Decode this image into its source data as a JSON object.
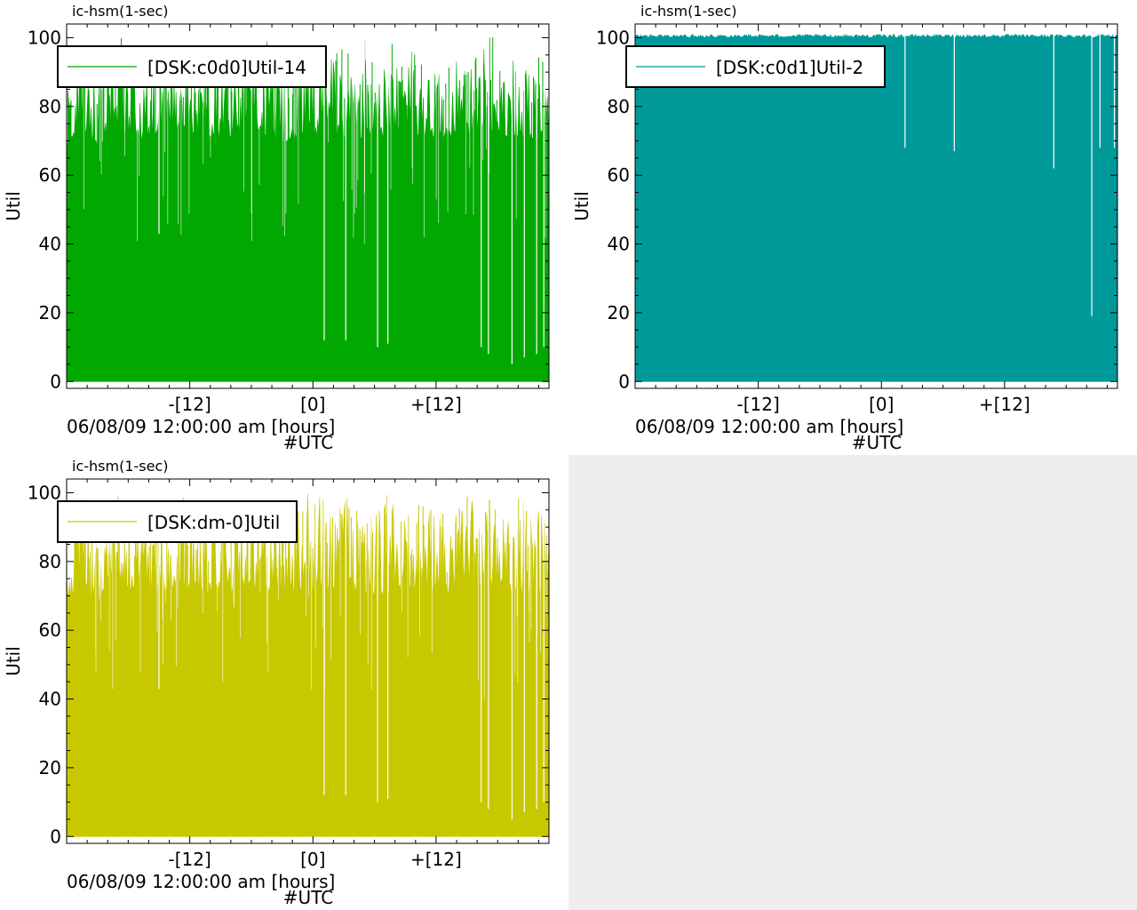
{
  "chart_data": [
    {
      "type": "area",
      "title": "ic-hsm(1-sec)",
      "ylabel": "Util",
      "xlabel": "06/08/09 12:00:00 am [hours]",
      "xlabel2": "#UTC",
      "ylim": [
        0,
        100
      ],
      "xlim": [
        -24,
        23
      ],
      "x_ticks": [
        -12,
        0,
        12
      ],
      "x_tick_labels": [
        "-[12]",
        "[0]",
        "+[12]"
      ],
      "y_ticks": [
        0,
        20,
        40,
        60,
        80,
        100
      ],
      "legend_loc": "upper-left",
      "grid": false,
      "series": [
        {
          "name": "[DSK:c0d0]Util-14",
          "color": "#00a800",
          "x": [
            -24,
            -23,
            -22,
            -21,
            -20,
            -19,
            -18,
            -17,
            -16,
            -15,
            -14,
            -13,
            -12,
            -11,
            -10,
            -9,
            -8,
            -7,
            -6,
            -5,
            -4,
            -3,
            -2,
            -1,
            0,
            1,
            2,
            3,
            4,
            5,
            6,
            7,
            8,
            9,
            10,
            11,
            12,
            13,
            14,
            15,
            16,
            17,
            18,
            19,
            20,
            21,
            22,
            23
          ],
          "max": [
            85,
            100,
            97,
            95,
            98,
            100,
            100,
            95,
            92,
            100,
            95,
            98,
            100,
            92,
            98,
            99,
            97,
            100,
            96,
            99,
            100,
            95,
            97,
            99,
            100,
            101,
            94,
            100,
            96,
            100,
            93,
            100,
            98,
            92,
            100,
            95,
            100,
            91,
            94,
            100,
            96,
            100,
            101,
            93,
            99,
            100,
            95,
            90
          ],
          "base": [
            65,
            70,
            70,
            68,
            70,
            72,
            70,
            70,
            68,
            70,
            70,
            72,
            70,
            70,
            70,
            70,
            70,
            70,
            72,
            70,
            70,
            68,
            70,
            70,
            70,
            70,
            72,
            70,
            70,
            70,
            70,
            70,
            70,
            72,
            70,
            70,
            70,
            70,
            70,
            70,
            70,
            72,
            70,
            70,
            70,
            70,
            70,
            72
          ],
          "dips": [
            [
              -15,
              43
            ],
            [
              1.1,
              12
            ],
            [
              3.2,
              12
            ],
            [
              6.3,
              10
            ],
            [
              7.3,
              11
            ],
            [
              16.4,
              10
            ],
            [
              17.1,
              8
            ],
            [
              19.4,
              5
            ],
            [
              20.6,
              7
            ],
            [
              21.8,
              8
            ],
            [
              22.5,
              10
            ]
          ]
        }
      ]
    },
    {
      "type": "area",
      "title": "ic-hsm(1-sec)",
      "ylabel": "Util",
      "xlabel": "06/08/09 12:00:00 am [hours]",
      "xlabel2": "#UTC",
      "ylim": [
        0,
        100
      ],
      "xlim": [
        -24,
        23
      ],
      "x_ticks": [
        -12,
        0,
        12
      ],
      "x_tick_labels": [
        "-[12]",
        "[0]",
        "+[12]"
      ],
      "y_ticks": [
        0,
        20,
        40,
        60,
        80,
        100
      ],
      "legend_loc": "upper-left",
      "grid": false,
      "series": [
        {
          "name": "[DSK:c0d1]Util-2",
          "color": "#009999",
          "x": [
            -24,
            23
          ],
          "max": [
            101,
            101
          ],
          "base": [
            100,
            100
          ],
          "dips": [
            [
              2.3,
              68
            ],
            [
              7.1,
              67
            ],
            [
              16.8,
              62
            ],
            [
              20.5,
              19
            ],
            [
              21.3,
              68
            ],
            [
              22.7,
              68
            ]
          ]
        }
      ]
    },
    {
      "type": "area",
      "title": "ic-hsm(1-sec)",
      "ylabel": "Util",
      "xlabel": "06/08/09 12:00:00 am [hours]",
      "xlabel2": "#UTC",
      "ylim": [
        0,
        100
      ],
      "xlim": [
        -24,
        23
      ],
      "x_ticks": [
        -12,
        0,
        12
      ],
      "x_tick_labels": [
        "-[12]",
        "[0]",
        "+[12]"
      ],
      "y_ticks": [
        0,
        20,
        40,
        60,
        80,
        100
      ],
      "legend_loc": "upper-left",
      "grid": false,
      "series": [
        {
          "name": "[DSK:dm-0]Util",
          "color": "#c8c800",
          "x": [
            -24,
            -23,
            -22,
            -21,
            -20,
            -19,
            -18,
            -17,
            -16,
            -15,
            -14,
            -13,
            -12,
            -11,
            -10,
            -9,
            -8,
            -7,
            -6,
            -5,
            -4,
            -3,
            -2,
            -1,
            0,
            1,
            2,
            3,
            4,
            5,
            6,
            7,
            8,
            9,
            10,
            11,
            12,
            13,
            14,
            15,
            16,
            17,
            18,
            19,
            20,
            21,
            22,
            23
          ],
          "max": [
            85,
            100,
            97,
            95,
            98,
            100,
            100,
            95,
            92,
            100,
            95,
            98,
            100,
            92,
            98,
            99,
            97,
            100,
            96,
            99,
            100,
            95,
            97,
            99,
            102,
            101,
            94,
            100,
            96,
            100,
            93,
            100,
            98,
            92,
            100,
            95,
            100,
            91,
            94,
            100,
            96,
            100,
            101,
            93,
            99,
            100,
            95,
            90
          ],
          "base": [
            65,
            70,
            70,
            68,
            70,
            72,
            70,
            70,
            68,
            70,
            70,
            72,
            70,
            70,
            70,
            70,
            70,
            70,
            72,
            70,
            70,
            68,
            70,
            70,
            70,
            70,
            72,
            70,
            70,
            70,
            70,
            70,
            70,
            72,
            70,
            70,
            70,
            70,
            70,
            70,
            70,
            72,
            70,
            70,
            70,
            70,
            70,
            72
          ],
          "dips": [
            [
              -15,
              43
            ],
            [
              1.1,
              12
            ],
            [
              3.2,
              12
            ],
            [
              6.3,
              10
            ],
            [
              7.3,
              11
            ],
            [
              16.4,
              10
            ],
            [
              17.1,
              8
            ],
            [
              19.4,
              5
            ],
            [
              20.6,
              7
            ],
            [
              21.8,
              8
            ],
            [
              22.5,
              10
            ]
          ]
        }
      ]
    }
  ]
}
